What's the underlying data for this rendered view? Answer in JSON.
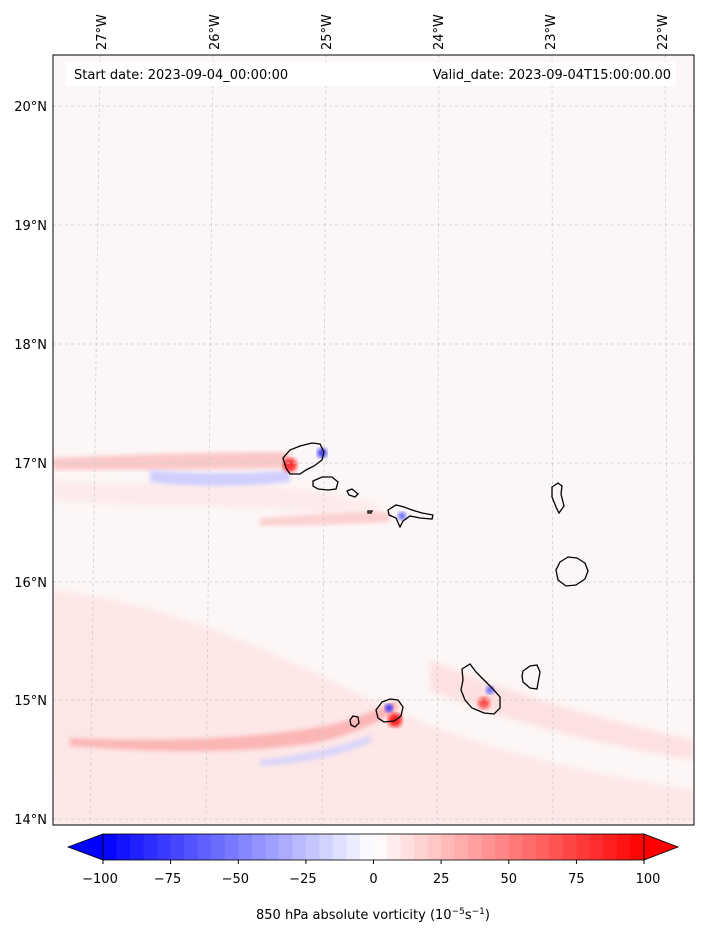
{
  "map": {
    "header": {
      "start_date": "Start date: 2023-09-04_00:00:00",
      "valid_date": "Valid_date: 2023-09-04T15:00:00.00"
    },
    "lon_labels": [
      "27°W",
      "26°W",
      "25°W",
      "24°W",
      "23°W",
      "22°W"
    ],
    "lat_labels": [
      "20°N",
      "19°N",
      "18°N",
      "17°N",
      "16°N",
      "15°N",
      "14°N"
    ],
    "field": "850 hPa absolute vorticity",
    "colors": {
      "negative": "#0000ff",
      "neutral": "#ffffff",
      "positive": "#ff0000",
      "background_tint": "#fdf4f4",
      "coastline": "#000000",
      "gridline": "#cccccc"
    }
  },
  "colorbar": {
    "tick_labels": [
      "−100",
      "−75",
      "−50",
      "−25",
      "0",
      "25",
      "50",
      "75",
      "100"
    ],
    "label_main": "850 hPa absolute vorticity (10",
    "label_exp1": "−5",
    "label_mid": "s",
    "label_exp2": "−1",
    "label_end": ")",
    "min": -100,
    "max": 100,
    "extend": "both"
  }
}
